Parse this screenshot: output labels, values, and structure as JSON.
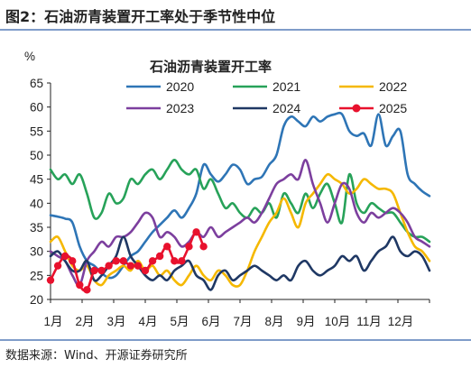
{
  "figure_title": "图2：石油沥青装置开工率处于季节性中位",
  "source": "数据来源：Wind、开源证券研究所",
  "chart_data": {
    "type": "line",
    "title": "石油沥青装置开工率",
    "ylabel": "%",
    "xlabel": "",
    "ylim": [
      20,
      65
    ],
    "yticks": [
      20,
      25,
      30,
      35,
      40,
      45,
      50,
      55,
      60,
      65
    ],
    "xlim": [
      0,
      52
    ],
    "x_tick_labels": [
      "1月",
      "2月",
      "3月",
      "4月",
      "5月",
      "6月",
      "7月",
      "8月",
      "9月",
      "10月",
      "11月",
      "12月"
    ],
    "grid": false,
    "legend": "top",
    "series": [
      {
        "name": "2020",
        "color": "#2e75b6",
        "marker": false,
        "x": [
          0,
          1,
          2,
          3,
          4,
          5,
          6,
          7,
          8,
          9,
          10,
          11,
          12,
          13,
          14,
          15,
          16,
          17,
          18,
          19,
          20,
          21,
          22,
          23,
          24,
          25,
          26,
          27,
          28,
          29,
          30,
          31,
          32,
          33,
          34,
          35,
          36,
          37,
          38,
          39,
          40,
          41,
          42,
          43,
          44,
          45,
          46,
          47,
          48,
          49,
          50,
          51,
          52
        ],
        "values": [
          37.5,
          37.2,
          36.8,
          36,
          31,
          28,
          27,
          25.5,
          24.5,
          25,
          27,
          29,
          30,
          32,
          34,
          35.5,
          37,
          38.5,
          37,
          39,
          42,
          48,
          46,
          44.5,
          46,
          48,
          47,
          44,
          45,
          45.5,
          48,
          50,
          56,
          58,
          57,
          56,
          58,
          57,
          58,
          58.5,
          58.5,
          55,
          54,
          54.5,
          52,
          58.5,
          52,
          54,
          55,
          46,
          44,
          42.5,
          41.5
        ]
      },
      {
        "name": "2021",
        "color": "#27a259",
        "marker": false,
        "x": [
          0,
          1,
          2,
          3,
          4,
          5,
          6,
          7,
          8,
          9,
          10,
          11,
          12,
          13,
          14,
          15,
          16,
          17,
          18,
          19,
          20,
          21,
          22,
          23,
          24,
          25,
          26,
          27,
          28,
          29,
          30,
          31,
          32,
          33,
          34,
          35,
          36,
          37,
          38,
          39,
          40,
          41,
          42,
          43,
          44,
          45,
          46,
          47,
          48,
          49,
          50,
          51,
          52
        ],
        "values": [
          47,
          45,
          46,
          44,
          46,
          42,
          37,
          38,
          42,
          40,
          41,
          45,
          44,
          46,
          47,
          45,
          47,
          49,
          47,
          46,
          47,
          43,
          45,
          42,
          39,
          40,
          38,
          37,
          39,
          38,
          40,
          37,
          42,
          40,
          38,
          42,
          39,
          42,
          44,
          40,
          36,
          46,
          40,
          38,
          40,
          39,
          38,
          38,
          36,
          34,
          33,
          33,
          32
        ]
      },
      {
        "name": "2022",
        "color": "#f5b800",
        "marker": false,
        "x": [
          0,
          1,
          2,
          3,
          4,
          5,
          6,
          7,
          8,
          9,
          10,
          11,
          12,
          13,
          14,
          15,
          16,
          17,
          18,
          19,
          20,
          21,
          22,
          23,
          24,
          25,
          26,
          27,
          28,
          29,
          30,
          31,
          32,
          33,
          34,
          35,
          36,
          37,
          38,
          39,
          40,
          41,
          42,
          43,
          44,
          45,
          46,
          47,
          48,
          49,
          50,
          51,
          52
        ],
        "values": [
          32,
          33,
          30,
          27,
          26,
          27,
          24,
          23,
          25,
          26,
          27,
          26,
          28,
          26,
          27,
          25,
          26,
          24,
          23,
          25,
          27,
          25,
          24,
          26,
          25,
          23,
          23,
          26,
          30,
          33,
          36,
          38,
          41,
          38,
          35,
          40,
          42,
          44,
          46,
          45,
          44,
          42,
          43,
          45,
          44,
          43,
          43,
          42,
          38,
          34,
          31,
          30,
          28
        ]
      },
      {
        "name": "2023",
        "color": "#7c3f9e",
        "marker": false,
        "x": [
          0,
          1,
          2,
          3,
          4,
          5,
          6,
          7,
          8,
          9,
          10,
          11,
          12,
          13,
          14,
          15,
          16,
          17,
          18,
          19,
          20,
          21,
          22,
          23,
          24,
          25,
          26,
          27,
          28,
          29,
          30,
          31,
          32,
          33,
          34,
          35,
          36,
          37,
          38,
          39,
          40,
          41,
          42,
          43,
          44,
          45,
          46,
          47,
          48,
          49,
          50,
          51,
          52
        ],
        "values": [
          30,
          29,
          28,
          25,
          23,
          28,
          30,
          32,
          31,
          33,
          33,
          34,
          36,
          38,
          37,
          33,
          34,
          33,
          31,
          32,
          34,
          33,
          35,
          33,
          34,
          35,
          36,
          37,
          36,
          38,
          41,
          44,
          45,
          46,
          45,
          49,
          44,
          40,
          36,
          40,
          44,
          43,
          38,
          36,
          38,
          37,
          38,
          39,
          38,
          36,
          33,
          32,
          31
        ]
      },
      {
        "name": "2024",
        "color": "#1f3864",
        "marker": false,
        "x": [
          0,
          1,
          2,
          3,
          4,
          5,
          6,
          7,
          8,
          9,
          10,
          11,
          12,
          13,
          14,
          15,
          16,
          17,
          18,
          19,
          20,
          21,
          22,
          23,
          24,
          25,
          26,
          27,
          28,
          29,
          30,
          31,
          32,
          33,
          34,
          35,
          36,
          37,
          38,
          39,
          40,
          41,
          42,
          43,
          44,
          45,
          46,
          47,
          48,
          49,
          50,
          51,
          52
        ],
        "values": [
          29,
          30,
          28,
          26,
          26,
          28,
          24,
          25,
          27,
          29,
          33,
          29,
          27,
          25,
          24,
          25,
          24,
          26,
          27,
          28,
          25,
          24,
          22,
          25,
          26,
          24,
          25,
          26,
          27,
          26,
          25,
          24,
          25,
          24,
          27,
          28,
          26,
          25,
          26,
          27,
          29,
          28,
          29,
          26,
          28,
          30,
          31,
          33,
          30,
          29,
          30,
          29,
          26
        ]
      },
      {
        "name": "2025",
        "color": "#e8112d",
        "marker": true,
        "x": [
          0,
          1,
          2,
          3,
          4,
          5,
          6,
          7,
          8,
          9,
          10,
          11,
          12,
          13,
          14,
          15,
          16,
          17,
          18,
          19,
          20,
          21
        ],
        "values": [
          24,
          27,
          29,
          28,
          23,
          22,
          26,
          26,
          27,
          28,
          28,
          27,
          27,
          26,
          28,
          29,
          31,
          28,
          28,
          31,
          34,
          31
        ]
      }
    ]
  }
}
